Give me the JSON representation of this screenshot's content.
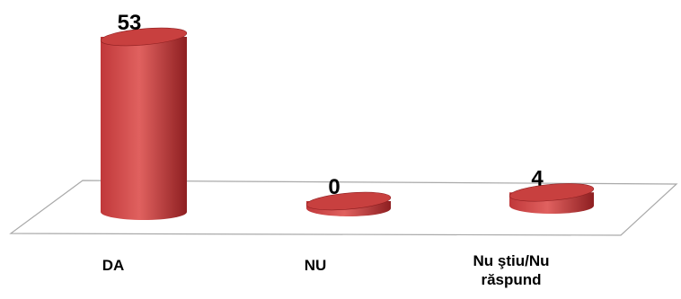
{
  "chart_data": {
    "type": "bar",
    "style": "3d-cylinder",
    "categories": [
      "DA",
      "NU",
      "Nu ştiu/Nu răspund"
    ],
    "values": [
      53,
      0,
      4
    ],
    "value_labels": [
      "53",
      "0",
      "4"
    ],
    "ylim": [
      0,
      53
    ],
    "grid": false,
    "legend": "none",
    "colors": {
      "bar_light": "#e0615f",
      "bar_mid": "#c0383a",
      "bar_dark": "#8e1f21",
      "top_fill": "#c8403f",
      "floor_line": "#a9a9a9"
    }
  }
}
